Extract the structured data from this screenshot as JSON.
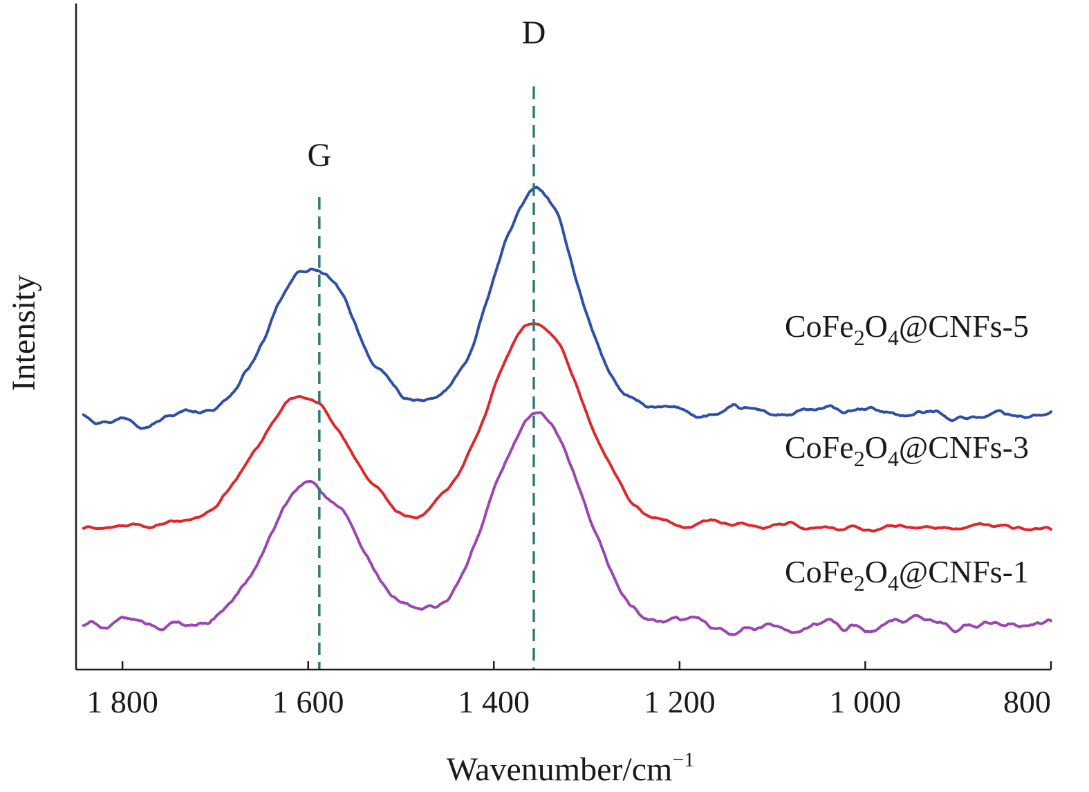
{
  "chart_data": {
    "type": "line",
    "title": "",
    "xlabel": "Wavenumber/cm",
    "xlabel_sup": "−1",
    "ylabel": "Intensity",
    "xlim": [
      1850,
      800
    ],
    "ylim": [
      0,
      12
    ],
    "x_reversed": true,
    "y_ticks_shown": false,
    "grid": false,
    "x_ticks": [
      {
        "value": 1800,
        "label": "1 800"
      },
      {
        "value": 1600,
        "label": "1 600"
      },
      {
        "value": 1400,
        "label": "1 400"
      },
      {
        "value": 1200,
        "label": "1 200"
      },
      {
        "value": 1000,
        "label": "1 000"
      },
      {
        "value": 800,
        "label": "800"
      }
    ],
    "reference_lines": [
      {
        "x": 1588,
        "label": "G",
        "color": "#2e7b78"
      },
      {
        "x": 1357,
        "label": "D",
        "color": "#2e7b78"
      }
    ],
    "series": [
      {
        "name": "CoFe2O4@CNFs-5",
        "label_parts": {
          "base": "CoFe",
          "sub1": "2",
          "mid": "O",
          "sub2": "4",
          "tail": "@CNFs-5"
        },
        "color": "#2f4ea8",
        "baseline": 4.6,
        "noise": 0.07,
        "peaks": [
          {
            "center": 1595,
            "amplitude": 2.6,
            "width": 46
          },
          {
            "center": 1355,
            "amplitude": 4.0,
            "width": 44
          }
        ]
      },
      {
        "name": "CoFe2O4@CNFs-3",
        "label_parts": {
          "base": "CoFe",
          "sub1": "2",
          "mid": "O",
          "sub2": "4",
          "tail": "@CNFs-3"
        },
        "color": "#e0262b",
        "baseline": 2.55,
        "noise": 0.05,
        "peaks": [
          {
            "center": 1605,
            "amplitude": 2.4,
            "width": 50
          },
          {
            "center": 1355,
            "amplitude": 3.7,
            "width": 52
          }
        ]
      },
      {
        "name": "CoFe2O4@CNFs-1",
        "label_parts": {
          "base": "CoFe",
          "sub1": "2",
          "mid": "O",
          "sub2": "4",
          "tail": "@CNFs-1"
        },
        "color": "#9b45b2",
        "baseline": 0.8,
        "noise": 0.08,
        "peaks": [
          {
            "center": 1595,
            "amplitude": 2.5,
            "width": 47
          },
          {
            "center": 1355,
            "amplitude": 3.8,
            "width": 46
          }
        ]
      }
    ]
  }
}
